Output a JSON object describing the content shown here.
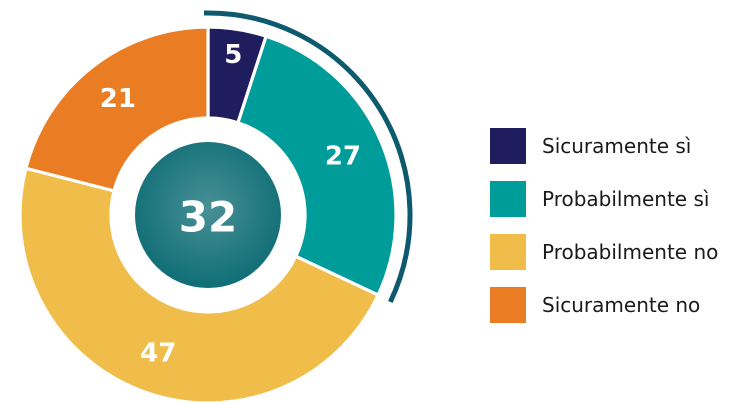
{
  "chart_data": {
    "type": "pie",
    "donut": true,
    "categories": [
      "Sicuramente sì",
      "Probabilmente sì",
      "Probabilmente no",
      "Sicuramente no"
    ],
    "values": [
      5,
      27,
      47,
      21
    ],
    "colors": [
      "#1f1d5e",
      "#009c9a",
      "#f0bd4a",
      "#ea7d24"
    ],
    "center_value": "32",
    "center_color": "#0b6b73",
    "highlight_arc_color": "#0d5a6e",
    "highlighted_categories": [
      "Sicuramente sì",
      "Probabilmente sì"
    ],
    "legend_position": "right"
  }
}
